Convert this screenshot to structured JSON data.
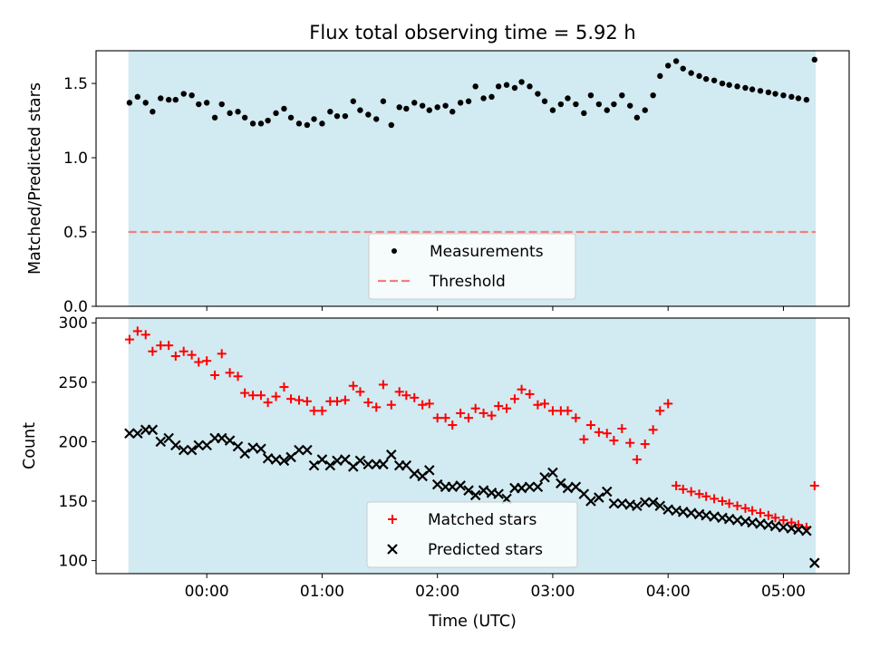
{
  "title": "Flux total observing time = 5.92 h",
  "shade_color": "#add8e6",
  "chart_data": [
    {
      "type": "scatter",
      "name_hint": "ratio",
      "ylabel": "Matched/Predicted stars",
      "ylim": [
        0,
        1.72
      ],
      "yticks": [
        0.0,
        0.5,
        1.0,
        1.5
      ],
      "ytick_labels": [
        "0.0",
        "0.5",
        "1.0",
        "1.5"
      ],
      "shaded_x_range": [
        -0.68,
        5.28
      ],
      "threshold": 0.5,
      "legend_location": "lower center",
      "series": [
        {
          "name": "Measurements",
          "marker": "dot",
          "color": "#000000",
          "x": [
            -0.67,
            -0.6,
            -0.53,
            -0.47,
            -0.4,
            -0.33,
            -0.27,
            -0.2,
            -0.13,
            -0.07,
            0.0,
            0.07,
            0.13,
            0.2,
            0.27,
            0.33,
            0.4,
            0.47,
            0.53,
            0.6,
            0.67,
            0.73,
            0.8,
            0.87,
            0.93,
            1.0,
            1.07,
            1.13,
            1.2,
            1.27,
            1.33,
            1.4,
            1.47,
            1.53,
            1.6,
            1.67,
            1.73,
            1.8,
            1.87,
            1.93,
            2.0,
            2.07,
            2.13,
            2.2,
            2.27,
            2.33,
            2.4,
            2.47,
            2.53,
            2.6,
            2.67,
            2.73,
            2.8,
            2.87,
            2.93,
            3.0,
            3.07,
            3.13,
            3.2,
            3.27,
            3.33,
            3.4,
            3.47,
            3.53,
            3.6,
            3.67,
            3.73,
            3.8,
            3.87,
            3.93,
            4.0,
            4.07,
            4.13,
            4.2,
            4.27,
            4.33,
            4.4,
            4.47,
            4.53,
            4.6,
            4.67,
            4.73,
            4.8,
            4.87,
            4.93,
            5.0,
            5.07,
            5.13,
            5.2,
            5.27
          ],
          "values": [
            1.37,
            1.41,
            1.37,
            1.31,
            1.4,
            1.39,
            1.39,
            1.43,
            1.42,
            1.36,
            1.37,
            1.27,
            1.36,
            1.3,
            1.31,
            1.27,
            1.23,
            1.23,
            1.25,
            1.3,
            1.33,
            1.27,
            1.23,
            1.22,
            1.26,
            1.23,
            1.31,
            1.28,
            1.28,
            1.38,
            1.32,
            1.29,
            1.26,
            1.38,
            1.22,
            1.34,
            1.33,
            1.37,
            1.35,
            1.32,
            1.34,
            1.35,
            1.31,
            1.37,
            1.38,
            1.48,
            1.4,
            1.41,
            1.48,
            1.49,
            1.47,
            1.51,
            1.48,
            1.43,
            1.38,
            1.32,
            1.36,
            1.4,
            1.36,
            1.3,
            1.42,
            1.36,
            1.32,
            1.36,
            1.42,
            1.35,
            1.27,
            1.32,
            1.42,
            1.55,
            1.62,
            1.65,
            1.6,
            1.57,
            1.55,
            1.53,
            1.52,
            1.5,
            1.49,
            1.48,
            1.47,
            1.46,
            1.45,
            1.44,
            1.43,
            1.42,
            1.41,
            1.4,
            1.39,
            1.66
          ]
        },
        {
          "name": "Threshold",
          "marker": "dashed-line",
          "color": "#f08080"
        }
      ]
    },
    {
      "type": "scatter",
      "name_hint": "counts",
      "xlabel": "Time (UTC)",
      "ylabel": "Count",
      "ylim": [
        89,
        304
      ],
      "yticks": [
        100,
        150,
        200,
        250,
        300
      ],
      "ytick_labels": [
        "100",
        "150",
        "200",
        "250",
        "300"
      ],
      "xlim": [
        -0.96,
        5.57
      ],
      "xticks": [
        0,
        1,
        2,
        3,
        4,
        5
      ],
      "xtick_labels": [
        "00:00",
        "01:00",
        "02:00",
        "03:00",
        "04:00",
        "05:00"
      ],
      "shaded_x_range": [
        -0.68,
        5.28
      ],
      "legend_location": "lower center",
      "series": [
        {
          "name": "Matched stars",
          "marker": "plus",
          "color": "#ff0000",
          "x": [
            -0.67,
            -0.6,
            -0.53,
            -0.47,
            -0.4,
            -0.33,
            -0.27,
            -0.2,
            -0.13,
            -0.07,
            0.0,
            0.07,
            0.13,
            0.2,
            0.27,
            0.33,
            0.4,
            0.47,
            0.53,
            0.6,
            0.67,
            0.73,
            0.8,
            0.87,
            0.93,
            1.0,
            1.07,
            1.13,
            1.2,
            1.27,
            1.33,
            1.4,
            1.47,
            1.53,
            1.6,
            1.67,
            1.73,
            1.8,
            1.87,
            1.93,
            2.0,
            2.07,
            2.13,
            2.2,
            2.27,
            2.33,
            2.4,
            2.47,
            2.53,
            2.6,
            2.67,
            2.73,
            2.8,
            2.87,
            2.93,
            3.0,
            3.07,
            3.13,
            3.2,
            3.27,
            3.33,
            3.4,
            3.47,
            3.53,
            3.6,
            3.67,
            3.73,
            3.8,
            3.87,
            3.93,
            4.0,
            4.07,
            4.13,
            4.2,
            4.27,
            4.33,
            4.4,
            4.47,
            4.53,
            4.6,
            4.67,
            4.73,
            4.8,
            4.87,
            4.93,
            5.0,
            5.07,
            5.13,
            5.2,
            5.27
          ],
          "values": [
            286,
            293,
            290,
            276,
            281,
            281,
            272,
            276,
            273,
            267,
            268,
            256,
            274,
            258,
            255,
            241,
            239,
            239,
            233,
            238,
            246,
            236,
            235,
            234,
            226,
            226,
            234,
            234,
            235,
            247,
            242,
            233,
            229,
            248,
            231,
            242,
            239,
            237,
            231,
            232,
            220,
            220,
            214,
            224,
            220,
            228,
            224,
            222,
            230,
            228,
            236,
            244,
            240,
            231,
            232,
            226,
            226,
            226,
            220,
            202,
            214,
            208,
            207,
            201,
            211,
            199,
            185,
            198,
            210,
            226,
            232,
            163,
            160,
            158,
            156,
            154,
            152,
            150,
            148,
            146,
            144,
            142,
            140,
            138,
            136,
            134,
            132,
            130,
            128,
            163
          ]
        },
        {
          "name": "Predicted stars",
          "marker": "x",
          "color": "#000000",
          "x": [
            -0.67,
            -0.6,
            -0.53,
            -0.47,
            -0.4,
            -0.33,
            -0.27,
            -0.2,
            -0.13,
            -0.07,
            0.0,
            0.07,
            0.13,
            0.2,
            0.27,
            0.33,
            0.4,
            0.47,
            0.53,
            0.6,
            0.67,
            0.73,
            0.8,
            0.87,
            0.93,
            1.0,
            1.07,
            1.13,
            1.2,
            1.27,
            1.33,
            1.4,
            1.47,
            1.53,
            1.6,
            1.67,
            1.73,
            1.8,
            1.87,
            1.93,
            2.0,
            2.07,
            2.13,
            2.2,
            2.27,
            2.33,
            2.4,
            2.47,
            2.53,
            2.6,
            2.67,
            2.73,
            2.8,
            2.87,
            2.93,
            3.0,
            3.07,
            3.13,
            3.2,
            3.27,
            3.33,
            3.4,
            3.47,
            3.53,
            3.6,
            3.67,
            3.73,
            3.8,
            3.87,
            3.93,
            4.0,
            4.07,
            4.13,
            4.2,
            4.27,
            4.33,
            4.4,
            4.47,
            4.53,
            4.6,
            4.67,
            4.73,
            4.8,
            4.87,
            4.93,
            5.0,
            5.07,
            5.13,
            5.2,
            5.27
          ],
          "values": [
            207,
            207,
            210,
            210,
            200,
            203,
            197,
            193,
            193,
            197,
            197,
            203,
            203,
            201,
            196,
            190,
            195,
            194,
            186,
            185,
            184,
            187,
            193,
            193,
            180,
            185,
            180,
            184,
            185,
            179,
            184,
            181,
            181,
            181,
            189,
            180,
            180,
            173,
            171,
            176,
            164,
            162,
            162,
            163,
            159,
            155,
            159,
            157,
            156,
            152,
            161,
            161,
            162,
            162,
            170,
            174,
            165,
            161,
            162,
            156,
            150,
            153,
            158,
            148,
            148,
            147,
            146,
            149,
            149,
            146,
            143,
            142,
            141,
            140,
            139,
            138,
            137,
            136,
            135,
            134,
            133,
            132,
            131,
            130,
            129,
            128,
            127,
            126,
            125,
            98
          ]
        }
      ]
    }
  ]
}
